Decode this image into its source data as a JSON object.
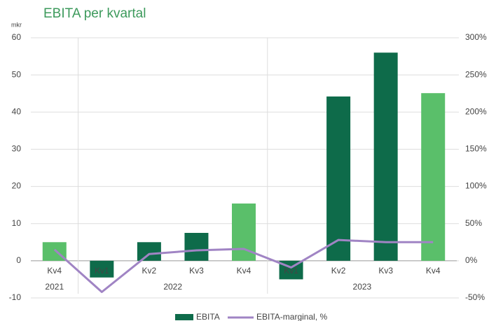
{
  "chart_data": {
    "type": "bar+line",
    "title": "EBITA per kvartal",
    "ylabel": "mkr",
    "categories": [
      "Kv4",
      "Kv1",
      "Kv2",
      "Kv3",
      "Kv4",
      "Kv1",
      "Kv2",
      "Kv3",
      "Kv4"
    ],
    "category_groups": [
      {
        "name": "2021",
        "count": 1
      },
      {
        "name": "2022",
        "count": 4
      },
      {
        "name": "2023",
        "count": 4
      }
    ],
    "series": [
      {
        "name": "EBITA",
        "type": "bar",
        "color": "#0e6b4a",
        "colors": [
          "#5abf6a",
          "#0e6b4a",
          "#0e6b4a",
          "#0e6b4a",
          "#5abf6a",
          "#0e6b4a",
          "#0e6b4a",
          "#0e6b4a",
          "#5abf6a"
        ],
        "values": [
          5,
          -4.5,
          5,
          7.5,
          15.4,
          -5,
          44.2,
          56,
          45.1
        ]
      },
      {
        "name": "EBITA-marginal, %",
        "type": "line",
        "axis": "y2",
        "color": "#a084c4",
        "values": [
          15,
          -42,
          9,
          14,
          16,
          -9,
          28,
          25,
          25
        ]
      }
    ],
    "ylim": [
      -10,
      60
    ],
    "yticks": [
      -10,
      0,
      10,
      20,
      30,
      40,
      50,
      60
    ],
    "y2lim": [
      -50,
      300
    ],
    "y2ticks": [
      {
        "value": -50,
        "label": "-50%"
      },
      {
        "value": 0,
        "label": "0%"
      },
      {
        "value": 50,
        "label": "50%"
      },
      {
        "value": 100,
        "label": "100%"
      },
      {
        "value": 150,
        "label": "150%"
      },
      {
        "value": 200,
        "label": "200%"
      },
      {
        "value": 250,
        "label": "250%"
      },
      {
        "value": 300,
        "label": "300%"
      }
    ],
    "grid": true,
    "legend": "bottom"
  }
}
